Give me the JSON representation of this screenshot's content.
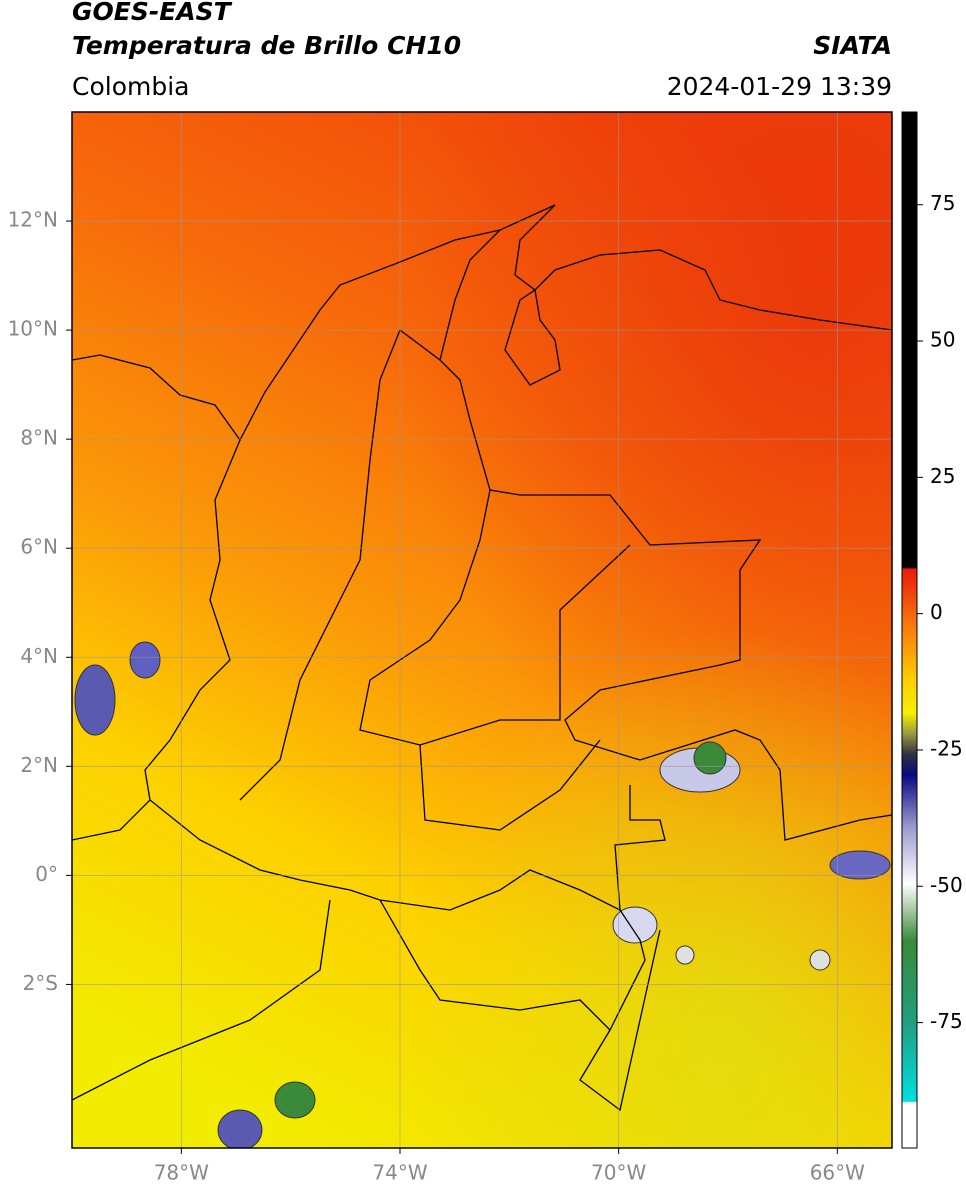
{
  "header": {
    "satellite": "GOES-EAST",
    "product": "Temperatura de Brillo CH10",
    "institution": "SIATA",
    "region": "Colombia",
    "datetime": "2024-01-29 13:39"
  },
  "map": {
    "xlim": [
      -80,
      -65
    ],
    "ylim": [
      -5,
      14
    ],
    "xticks": [
      {
        "value": -78,
        "label": "78°W"
      },
      {
        "value": -74,
        "label": "74°W"
      },
      {
        "value": -70,
        "label": "70°W"
      },
      {
        "value": -66,
        "label": "66°W"
      }
    ],
    "yticks": [
      {
        "value": 12,
        "label": "12°N"
      },
      {
        "value": 10,
        "label": "10°N"
      },
      {
        "value": 8,
        "label": "8°N"
      },
      {
        "value": 6,
        "label": "6°N"
      },
      {
        "value": 4,
        "label": "4°N"
      },
      {
        "value": 2,
        "label": "2°N"
      },
      {
        "value": 0,
        "label": "0°"
      },
      {
        "value": -2,
        "label": "2°S"
      }
    ],
    "grid": true
  },
  "colorbar": {
    "lim": [
      -98,
      92
    ],
    "ticks": [
      75,
      50,
      25,
      0,
      -25,
      -50,
      -75
    ]
  }
}
